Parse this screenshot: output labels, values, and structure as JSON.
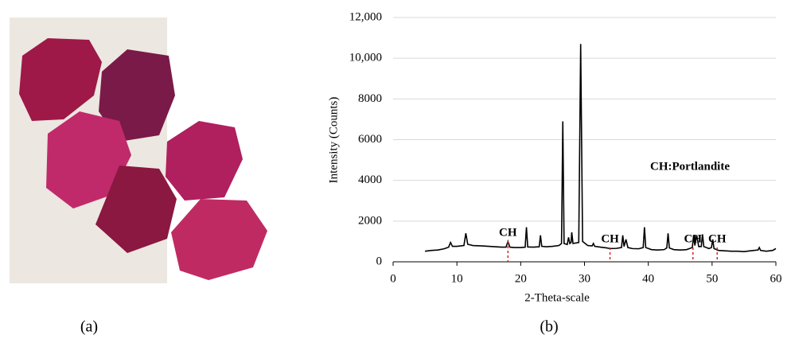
{
  "chart_data": {
    "type": "line",
    "xlabel": "2-Theta-scale",
    "ylabel": "Intensity (Counts)",
    "xlim": [
      0,
      60
    ],
    "xticks": [
      0,
      10,
      20,
      30,
      40,
      50,
      60
    ],
    "ylim": [
      0,
      12000
    ],
    "yticks": [
      0,
      2000,
      4000,
      6000,
      8000,
      {
        "value": 10000,
        "label": "10,000"
      },
      {
        "value": 12000,
        "label": "12,000"
      }
    ],
    "grid": true,
    "color": "#000000",
    "x": [
      5,
      6,
      7,
      8,
      8.7,
      9.0,
      9.3,
      10,
      11.1,
      11.4,
      11.7,
      12.5,
      14,
      15,
      16,
      17,
      17.7,
      18.0,
      18.3,
      19,
      20,
      20.7,
      20.9,
      21.1,
      22,
      22.9,
      23.1,
      23.3,
      24,
      25,
      26,
      26.4,
      26.6,
      26.8,
      27.3,
      27.5,
      27.7,
      27.9,
      28.0,
      28.2,
      29.1,
      29.4,
      29.7,
      30.5,
      31.2,
      31.4,
      31.6,
      32.5,
      33.5,
      34,
      35,
      35.8,
      36.0,
      36.2,
      36.5,
      36.8,
      37.5,
      38.5,
      39.2,
      39.4,
      39.6,
      40.5,
      41.5,
      42.5,
      42.9,
      43.1,
      43.3,
      44,
      45,
      46,
      46.9,
      47.1,
      47.3,
      47.6,
      47.9,
      48.3,
      48.5,
      48.7,
      49.5,
      49.9,
      50.1,
      50.3,
      51,
      52,
      53,
      54,
      55,
      56,
      57.2,
      57.4,
      57.6,
      58.5,
      59.5,
      60
    ],
    "values": [
      520,
      560,
      580,
      640,
      720,
      950,
      760,
      760,
      800,
      1400,
      860,
      800,
      780,
      760,
      740,
      720,
      720,
      1000,
      720,
      700,
      700,
      720,
      1700,
      730,
      720,
      740,
      1300,
      760,
      740,
      760,
      800,
      900,
      6900,
      900,
      850,
      1200,
      900,
      950,
      1450,
      900,
      950,
      10700,
      1000,
      800,
      780,
      900,
      760,
      720,
      680,
      650,
      660,
      700,
      1300,
      750,
      1100,
      700,
      650,
      640,
      700,
      1700,
      700,
      600,
      580,
      600,
      680,
      1400,
      680,
      600,
      580,
      600,
      700,
      1300,
      800,
      1300,
      750,
      750,
      1350,
      750,
      650,
      700,
      1100,
      650,
      560,
      540,
      520,
      520,
      500,
      540,
      580,
      700,
      560,
      520,
      560,
      650
    ],
    "annotation_color": "#e02020",
    "annotations": [
      {
        "text": "CH",
        "x": 18
      },
      {
        "text": "CH",
        "x": 34
      },
      {
        "text": "CH",
        "x": 47
      },
      {
        "text": "CH",
        "x": 50.8
      }
    ],
    "legend_text": "CH:Portlandite"
  },
  "captions": [
    "(a)",
    "(b)"
  ]
}
